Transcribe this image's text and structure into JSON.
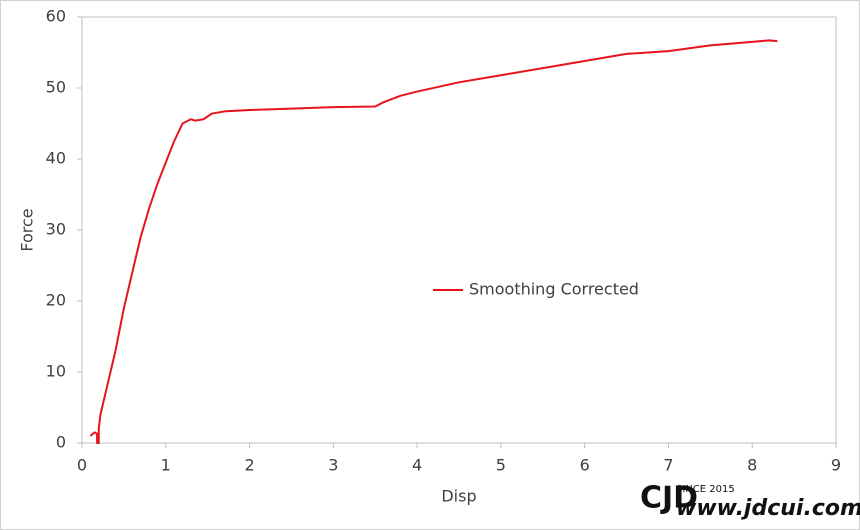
{
  "chart_data": {
    "type": "line",
    "x_label": "Disp",
    "y_label": "Force",
    "xlim": [
      0,
      9
    ],
    "xticks": [
      0,
      1,
      2,
      3,
      4,
      5,
      6,
      7,
      8,
      9
    ],
    "ylim": [
      0,
      60
    ],
    "yticks": [
      0,
      10,
      20,
      30,
      40,
      50,
      60
    ],
    "grid": false,
    "legend_position": "center",
    "series": [
      {
        "name": "Smoothing Corrected",
        "color": "#e8141c",
        "x": [
          0.1,
          0.15,
          0.18,
          0.18,
          0.2,
          0.2,
          0.22,
          0.3,
          0.4,
          0.5,
          0.6,
          0.7,
          0.8,
          0.9,
          1.0,
          1.1,
          1.2,
          1.3,
          1.35,
          1.45,
          1.5,
          1.55,
          1.7,
          2.0,
          2.5,
          3.0,
          3.5,
          3.6,
          3.8,
          4.0,
          4.5,
          5.0,
          5.5,
          6.0,
          6.5,
          7.0,
          7.5,
          8.0,
          8.2,
          8.3
        ],
        "values": [
          1,
          1.5,
          1.3,
          0,
          0,
          2,
          4,
          8,
          13,
          19,
          24,
          29,
          33,
          36.5,
          39.5,
          42.5,
          45,
          45.6,
          45.4,
          45.6,
          46,
          46.4,
          46.7,
          46.9,
          47.1,
          47.3,
          47.4,
          48,
          48.9,
          49.5,
          50.8,
          51.8,
          52.8,
          53.8,
          54.8,
          55.2,
          56,
          56.5,
          56.7,
          56.6
        ]
      }
    ]
  },
  "watermark": {
    "since": "SINCE 2015",
    "site": "www.jdcui.com"
  }
}
